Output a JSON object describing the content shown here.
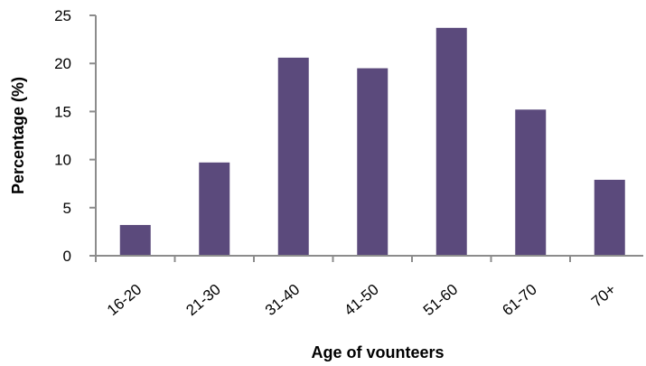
{
  "chart_data": {
    "type": "bar",
    "title": "",
    "xlabel": "Age of vounteers",
    "ylabel": "Percentage (%)",
    "categories": [
      "16-20",
      "21-30",
      "31-40",
      "41-50",
      "51-60",
      "61-70",
      "70+"
    ],
    "values": [
      3.2,
      9.7,
      20.6,
      19.5,
      23.7,
      15.2,
      7.9
    ],
    "ylim": [
      0,
      25
    ],
    "yticks": [
      "0",
      "5",
      "10",
      "15",
      "20",
      "25"
    ],
    "grid": false,
    "legend": "none",
    "bar_color": "#5b4a7c",
    "axis_color": "#8c8c8c"
  }
}
